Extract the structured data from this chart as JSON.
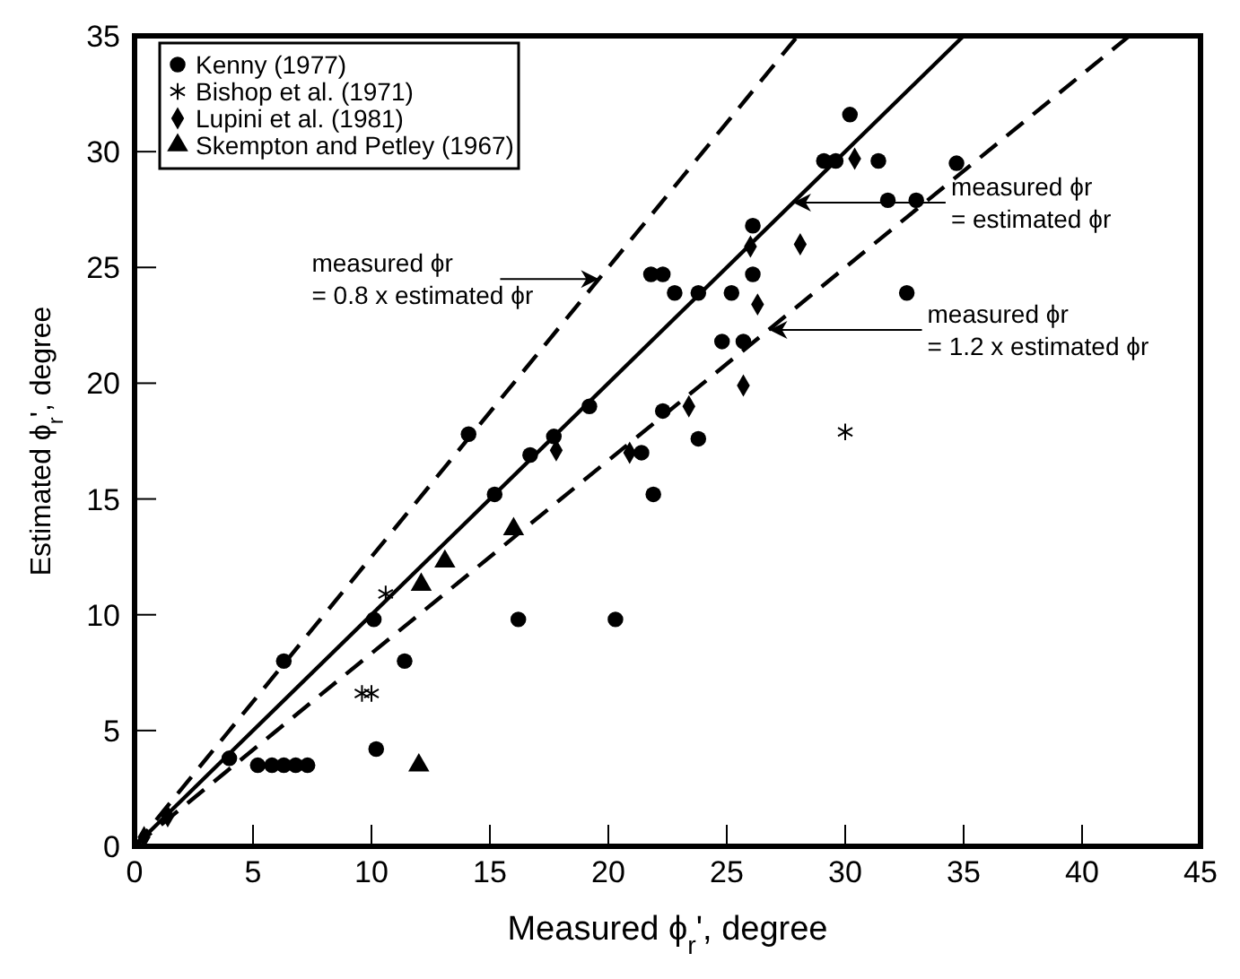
{
  "chart_data": {
    "type": "scatter",
    "xlabel": "Measured ϕ$_{r}$', degree",
    "ylabel": "Estimated ϕ$_{r}$', degree",
    "xlim": [
      0,
      45
    ],
    "ylim": [
      0,
      35
    ],
    "xticks": [
      0,
      5,
      10,
      15,
      20,
      25,
      30,
      35,
      40,
      45
    ],
    "yticks": [
      0,
      5,
      10,
      15,
      20,
      25,
      30,
      35
    ],
    "grid": false,
    "legend": "top left",
    "series": [
      {
        "name": "Kenny (1977)",
        "color": "#000000",
        "marker": "circle",
        "x": [
          4.0,
          5.2,
          5.8,
          6.3,
          6.8,
          7.3,
          6.3,
          10.1,
          10.2,
          11.4,
          14.1,
          15.2,
          16.2,
          16.7,
          17.7,
          19.2,
          20.3,
          21.9,
          22.3,
          21.8,
          22.3,
          22.8,
          23.8,
          23.8,
          25.2,
          24.8,
          25.7,
          26.1,
          26.1,
          29.1,
          29.6,
          30.2,
          31.4,
          31.8,
          33.0,
          32.6,
          34.7,
          21.4
        ],
        "values": [
          3.8,
          3.5,
          3.5,
          3.5,
          3.5,
          3.5,
          8.0,
          9.8,
          4.2,
          8.0,
          17.8,
          15.2,
          9.8,
          16.9,
          17.7,
          19.0,
          9.8,
          15.2,
          18.8,
          24.7,
          24.7,
          23.9,
          23.9,
          17.6,
          23.9,
          21.8,
          21.8,
          24.7,
          26.8,
          29.6,
          29.6,
          31.6,
          29.6,
          27.9,
          27.9,
          23.9,
          29.5,
          17.0
        ]
      },
      {
        "name": "Bishop et al. (1971)",
        "color": "#000000",
        "marker": "cross",
        "x": [
          10.6,
          9.6,
          10.0,
          30.0
        ],
        "values": [
          10.9,
          6.6,
          6.6,
          17.9
        ]
      },
      {
        "name": "Lupini et al. (1981)",
        "color": "#000000",
        "marker": "diamond",
        "x": [
          0.4,
          1.4,
          17.8,
          20.9,
          23.4,
          25.7,
          26.3,
          26.0,
          28.1,
          30.4
        ],
        "values": [
          0.4,
          1.3,
          17.1,
          17.0,
          19.0,
          19.9,
          23.4,
          25.9,
          26.0,
          29.7
        ]
      },
      {
        "name": "Skempton and Petley (1967)",
        "color": "#000000",
        "marker": "triangle",
        "x": [
          12.1,
          13.1,
          16.0,
          12.0
        ],
        "values": [
          11.3,
          12.3,
          13.7,
          3.5
        ]
      },
      {
        "type": "line",
        "color": "#000000",
        "line_style": "dashed",
        "x": [
          0,
          28
        ],
        "values": [
          0,
          35
        ]
      },
      {
        "type": "line",
        "color": "#000000",
        "line_style": "solid",
        "x": [
          0,
          35
        ],
        "values": [
          0,
          35
        ]
      },
      {
        "type": "line",
        "color": "#000000",
        "line_style": "dashed",
        "x": [
          0,
          42
        ],
        "values": [
          0,
          35
        ]
      }
    ],
    "annotations": [
      {
        "text": "measured ϕr\n= 0.8 x estimated ϕr",
        "x": 19.6,
        "y": 24.5
      },
      {
        "text": "measured ϕr\n= estimated ϕr",
        "x": 27.8,
        "y": 27.8
      },
      {
        "text": "measured ϕr\n= 1.2 x estimated ϕr",
        "x": 26.8,
        "y": 22.3
      }
    ]
  }
}
